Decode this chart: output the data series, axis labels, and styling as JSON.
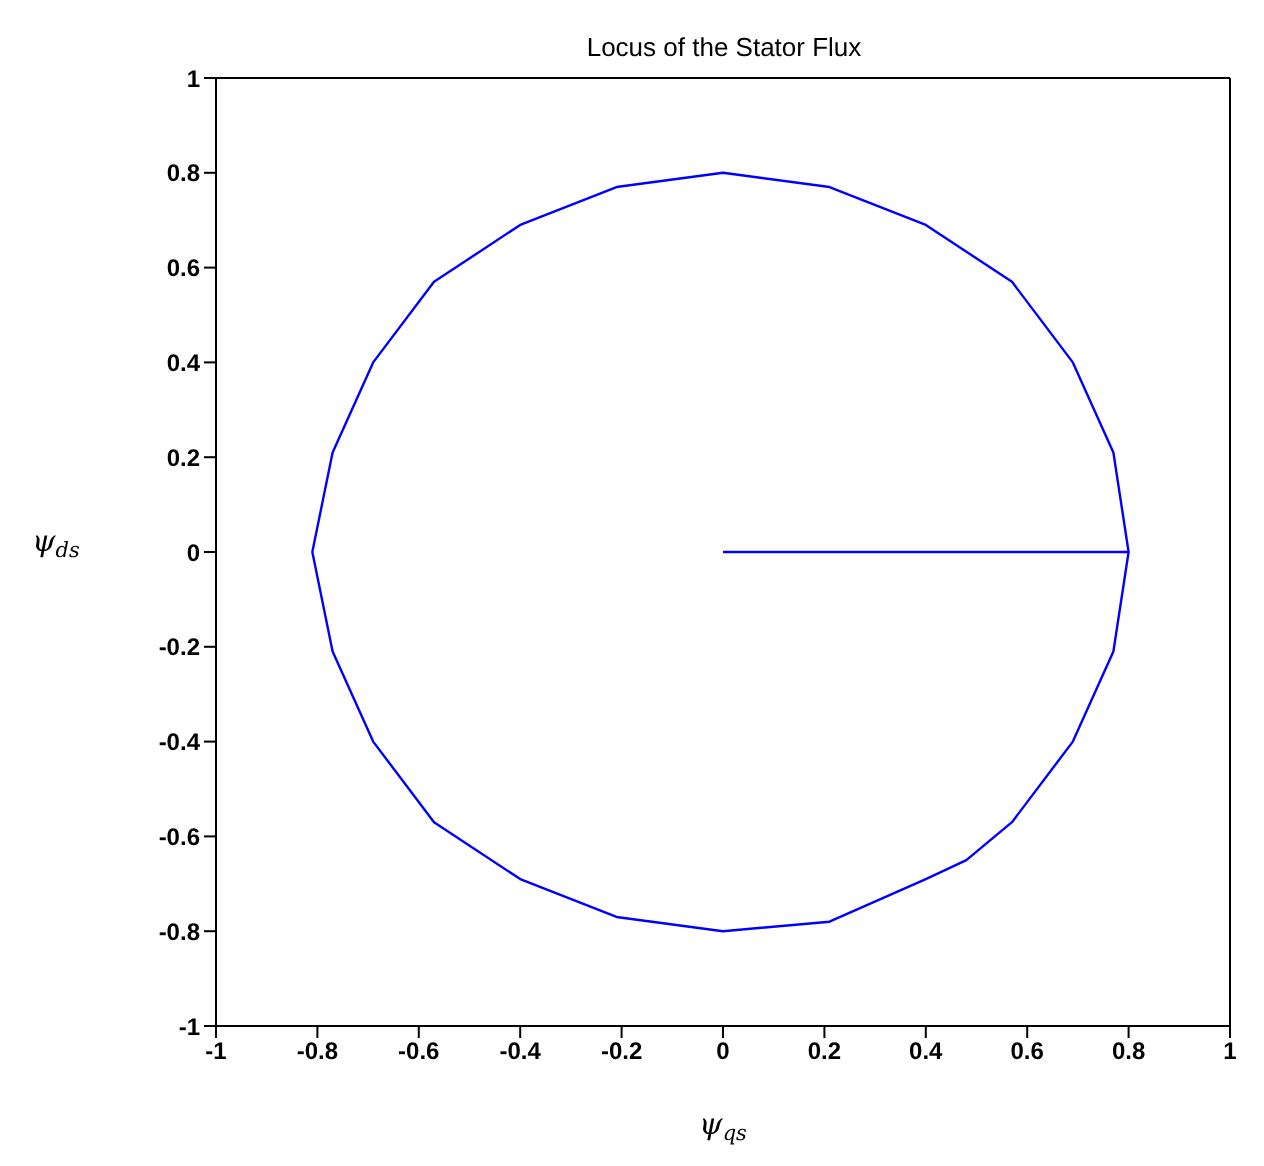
{
  "chart_data": {
    "type": "line",
    "title": "Locus of the Stator Flux",
    "xlabel": "ψ$_{qs}$",
    "ylabel": "ψ$_{ds}$",
    "x": [
      0,
      0.8,
      0.77,
      0.69,
      0.57,
      0.4,
      0.21,
      0,
      -0.21,
      -0.4,
      -0.57,
      -0.69,
      -0.77,
      -0.81,
      -0.77,
      -0.69,
      -0.57,
      -0.4,
      -0.21,
      0,
      0.21,
      0.4,
      0.48,
      0.57,
      0.69,
      0.77,
      0.8
    ],
    "series": [
      {
        "color": "#0000ff",
        "values": [
          0,
          0,
          0.21,
          0.4,
          0.57,
          0.69,
          0.77,
          0.8,
          0.77,
          0.69,
          0.57,
          0.4,
          0.21,
          0,
          -0.21,
          -0.4,
          -0.57,
          -0.69,
          -0.77,
          -0.8,
          -0.78,
          -0.69,
          -0.65,
          -0.57,
          -0.4,
          -0.21,
          0
        ]
      }
    ],
    "xlim": [
      -1,
      1
    ],
    "ylim": [
      -1,
      1
    ],
    "xticks": [
      -1,
      -0.8,
      -0.6,
      -0.4,
      -0.2,
      0,
      0.2,
      0.4,
      0.6,
      0.8,
      1
    ],
    "yticks": [
      -1,
      -0.8,
      -0.6,
      -0.4,
      -0.2,
      0,
      0.2,
      0.4,
      0.6,
      0.8,
      1
    ],
    "grid": false,
    "legend": false,
    "marker": "none",
    "line_style": "solid"
  }
}
